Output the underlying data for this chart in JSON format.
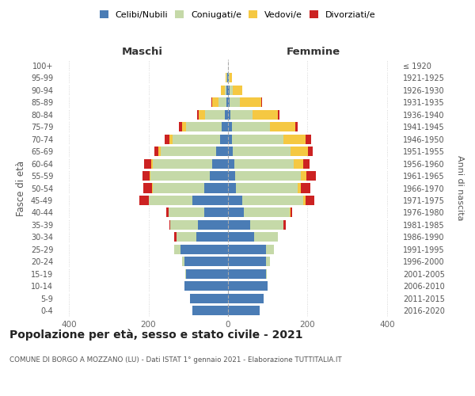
{
  "age_groups": [
    "0-4",
    "5-9",
    "10-14",
    "15-19",
    "20-24",
    "25-29",
    "30-34",
    "35-39",
    "40-44",
    "45-49",
    "50-54",
    "55-59",
    "60-64",
    "65-69",
    "70-74",
    "75-79",
    "80-84",
    "85-89",
    "90-94",
    "95-99",
    "100+"
  ],
  "birth_years": [
    "2016-2020",
    "2011-2015",
    "2006-2010",
    "2001-2005",
    "1996-2000",
    "1991-1995",
    "1986-1990",
    "1981-1985",
    "1976-1980",
    "1971-1975",
    "1966-1970",
    "1961-1965",
    "1956-1960",
    "1951-1955",
    "1946-1950",
    "1941-1945",
    "1936-1940",
    "1931-1935",
    "1926-1930",
    "1921-1925",
    "≤ 1920"
  ],
  "maschi": {
    "celibi": [
      90,
      95,
      110,
      105,
      110,
      120,
      80,
      75,
      60,
      90,
      60,
      45,
      40,
      30,
      20,
      15,
      8,
      4,
      3,
      2,
      0
    ],
    "coniugati": [
      0,
      0,
      0,
      2,
      5,
      15,
      50,
      70,
      90,
      110,
      130,
      150,
      150,
      140,
      120,
      90,
      50,
      20,
      5,
      2,
      0
    ],
    "vedovi": [
      0,
      0,
      0,
      0,
      0,
      0,
      0,
      0,
      0,
      0,
      1,
      2,
      3,
      5,
      8,
      10,
      15,
      15,
      10,
      2,
      0
    ],
    "divorziati": [
      0,
      0,
      0,
      0,
      0,
      0,
      5,
      3,
      5,
      22,
      22,
      18,
      18,
      10,
      12,
      8,
      5,
      2,
      0,
      0,
      0
    ]
  },
  "femmine": {
    "nubili": [
      80,
      90,
      100,
      95,
      95,
      95,
      65,
      55,
      40,
      35,
      20,
      18,
      15,
      12,
      10,
      10,
      6,
      4,
      3,
      2,
      0
    ],
    "coniugate": [
      0,
      0,
      0,
      2,
      10,
      20,
      60,
      85,
      115,
      155,
      155,
      165,
      150,
      145,
      130,
      95,
      55,
      25,
      8,
      2,
      0
    ],
    "vedove": [
      0,
      0,
      0,
      0,
      0,
      0,
      0,
      0,
      2,
      5,
      8,
      15,
      25,
      45,
      55,
      65,
      65,
      55,
      25,
      5,
      0
    ],
    "divorziate": [
      0,
      0,
      0,
      0,
      0,
      0,
      0,
      5,
      5,
      22,
      25,
      22,
      15,
      12,
      15,
      5,
      3,
      2,
      0,
      0,
      0
    ]
  },
  "colors": {
    "celibi": "#4a7cb5",
    "coniugati": "#c5d9a8",
    "vedovi": "#f5c842",
    "divorziati": "#cc2222"
  },
  "bg_color": "#f8f8f8",
  "grid_color": "#dddddd",
  "xlim": 430,
  "title": "Popolazione per età, sesso e stato civile - 2021",
  "subtitle": "COMUNE DI BORGO A MOZZANO (LU) - Dati ISTAT 1° gennaio 2021 - Elaborazione TUTTITALIA.IT",
  "xlabel_maschi": "Maschi",
  "xlabel_femmine": "Femmine",
  "ylabel": "Fasce di età",
  "ylabel2": "Anni di nascita",
  "legend_labels": [
    "Celibi/Nubili",
    "Coniugati/e",
    "Vedovi/e",
    "Divorziati/e"
  ]
}
